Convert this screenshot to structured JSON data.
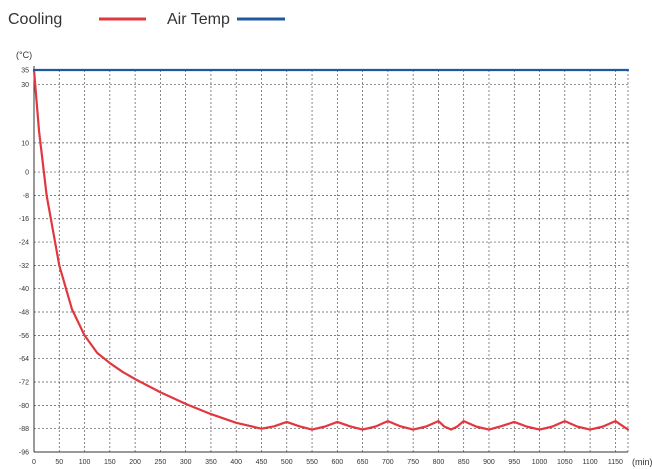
{
  "chart_data": {
    "type": "line",
    "title": "",
    "xlabel": "",
    "ylabel": "",
    "x_unit": "(min)",
    "y_unit": "(°C)",
    "legend": "top-left",
    "grid": true,
    "xlim": [
      0,
      1175
    ],
    "ylim": [
      -96,
      35
    ],
    "x_ticks": [
      "0",
      "50",
      "100",
      "150",
      "200",
      "250",
      "300",
      "350",
      "400",
      "450",
      "500",
      "550",
      "600",
      "650",
      "700",
      "750",
      "800",
      "850",
      "900",
      "950",
      "1000",
      "1050",
      "1100",
      "1150"
    ],
    "y_ticks": [
      "35",
      "30",
      "10",
      "0",
      "-8",
      "-16",
      "-24",
      "-32",
      "-40",
      "-48",
      "-56",
      "-64",
      "-72",
      "-80",
      "-88",
      "-96"
    ],
    "series": [
      {
        "name": "Cooling",
        "color": "#e2373f",
        "x": [
          0,
          10,
          25,
          50,
          75,
          100,
          125,
          150,
          175,
          200,
          250,
          300,
          350,
          400,
          450,
          475,
          500,
          525,
          550,
          575,
          600,
          625,
          650,
          675,
          700,
          725,
          750,
          775,
          800,
          812,
          825,
          837,
          850,
          875,
          900,
          925,
          950,
          975,
          1000,
          1025,
          1050,
          1075,
          1100,
          1125,
          1150,
          1175
        ],
        "y": [
          35,
          14,
          -8,
          -32,
          -47,
          -56,
          -62,
          -65.5,
          -68.5,
          -71,
          -75.5,
          -79.5,
          -83,
          -86,
          -88,
          -87.2,
          -85.7,
          -87.2,
          -88.3,
          -87.3,
          -85.7,
          -87.2,
          -88.3,
          -87.3,
          -85.4,
          -87.2,
          -88.3,
          -87.3,
          -85.4,
          -87.3,
          -88.3,
          -87.3,
          -85.4,
          -87.3,
          -88.3,
          -87.1,
          -85.7,
          -87.3,
          -88.3,
          -87.3,
          -85.4,
          -87.3,
          -88.3,
          -87.3,
          -85.4,
          -88.3
        ]
      },
      {
        "name": "Air Temp",
        "color": "#1f5aa0",
        "x": [
          0,
          1175
        ],
        "y": [
          35,
          35
        ]
      }
    ]
  }
}
